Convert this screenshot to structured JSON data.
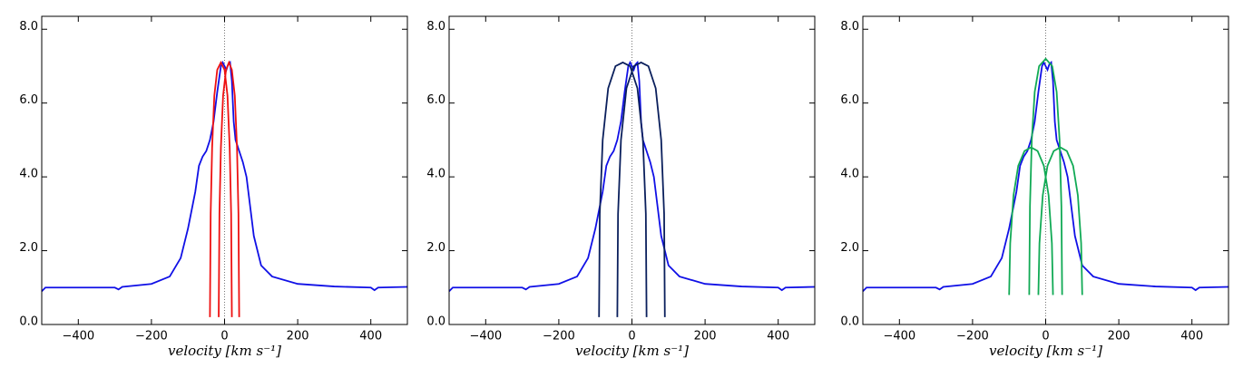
{
  "chart_data": [
    {
      "type": "line",
      "xlabel": "velocity [km s⁻¹]",
      "xlim": [
        -500,
        500
      ],
      "ylim": [
        0,
        8.35
      ],
      "xticks": [
        {
          "value": -400,
          "label": "−400"
        },
        {
          "value": -200,
          "label": "−200"
        },
        0,
        200,
        400
      ],
      "yticks": [
        {
          "value": 0,
          "label": "0.0"
        },
        {
          "value": 2,
          "label": "2.0"
        },
        {
          "value": 4,
          "label": "4.0"
        },
        {
          "value": 6,
          "label": "6.0"
        },
        {
          "value": 8,
          "label": "8.0"
        }
      ],
      "series": [
        {
          "color": "#1010e6",
          "x": [
            -500,
            -490,
            -400,
            -300,
            -290,
            -280,
            -200,
            -150,
            -120,
            -100,
            -80,
            -70,
            -60,
            -50,
            -40,
            -30,
            -20,
            -10,
            -5,
            0,
            5,
            10,
            15,
            20,
            25,
            30,
            40,
            50,
            60,
            70,
            80,
            100,
            130,
            200,
            300,
            400,
            410,
            420,
            500
          ],
          "values": [
            0.9,
            1.0,
            1.0,
            1.0,
            0.95,
            1.02,
            1.1,
            1.3,
            1.8,
            2.6,
            3.6,
            4.3,
            4.55,
            4.7,
            5.0,
            5.5,
            6.3,
            7.0,
            7.1,
            7.0,
            6.9,
            7.05,
            7.1,
            6.6,
            5.5,
            5.0,
            4.7,
            4.4,
            4.0,
            3.2,
            2.4,
            1.6,
            1.3,
            1.1,
            1.03,
            1.0,
            0.93,
            1.0,
            1.02
          ]
        },
        {
          "color": "#ee1111",
          "x": [
            -40,
            -38,
            -34,
            -28,
            -20,
            -10,
            0,
            8,
            14,
            18,
            20
          ],
          "values": [
            0.2,
            3.0,
            4.8,
            6.2,
            6.9,
            7.1,
            6.9,
            6.2,
            4.8,
            3.0,
            0.2
          ]
        },
        {
          "color": "#ee1111",
          "x": [
            -16,
            -14,
            -10,
            -4,
            4,
            12,
            20,
            28,
            34,
            38,
            40
          ],
          "values": [
            0.2,
            3.0,
            4.8,
            6.2,
            6.9,
            7.1,
            6.9,
            6.2,
            4.8,
            3.0,
            0.2
          ]
        }
      ]
    },
    {
      "type": "line",
      "xlabel": "velocity [km s⁻¹]",
      "xlim": [
        -500,
        500
      ],
      "ylim": [
        0,
        8.35
      ],
      "xticks": [
        {
          "value": -400,
          "label": "−400"
        },
        {
          "value": -200,
          "label": "−200"
        },
        0,
        200,
        400
      ],
      "yticks": [
        {
          "value": 0,
          "label": "0.0"
        },
        {
          "value": 2,
          "label": "2.0"
        },
        {
          "value": 4,
          "label": "4.0"
        },
        {
          "value": 6,
          "label": "6.0"
        },
        {
          "value": 8,
          "label": "8.0"
        }
      ],
      "series": [
        {
          "color": "#1010e6",
          "x": [
            -500,
            -490,
            -400,
            -300,
            -290,
            -280,
            -200,
            -150,
            -120,
            -100,
            -80,
            -70,
            -60,
            -50,
            -40,
            -30,
            -20,
            -10,
            -5,
            0,
            5,
            10,
            15,
            20,
            25,
            30,
            40,
            50,
            60,
            70,
            80,
            100,
            130,
            200,
            300,
            400,
            410,
            420,
            500
          ],
          "values": [
            0.9,
            1.0,
            1.0,
            1.0,
            0.95,
            1.02,
            1.1,
            1.3,
            1.8,
            2.6,
            3.6,
            4.3,
            4.55,
            4.7,
            5.0,
            5.5,
            6.3,
            7.0,
            7.1,
            7.0,
            6.9,
            7.05,
            7.1,
            6.6,
            5.5,
            5.0,
            4.7,
            4.4,
            4.0,
            3.2,
            2.4,
            1.6,
            1.3,
            1.1,
            1.03,
            1.0,
            0.93,
            1.0,
            1.02
          ]
        },
        {
          "color": "#0a1f5c",
          "x": [
            -90,
            -88,
            -80,
            -65,
            -45,
            -25,
            -5,
            15,
            30,
            38,
            40
          ],
          "values": [
            0.2,
            3.0,
            5.0,
            6.4,
            7.0,
            7.1,
            7.0,
            6.4,
            5.0,
            3.0,
            0.2
          ]
        },
        {
          "color": "#0a1f5c",
          "x": [
            -40,
            -38,
            -30,
            -15,
            5,
            25,
            45,
            65,
            80,
            88,
            90
          ],
          "values": [
            0.2,
            3.0,
            5.0,
            6.4,
            7.0,
            7.1,
            7.0,
            6.4,
            5.0,
            3.0,
            0.2
          ]
        }
      ]
    },
    {
      "type": "line",
      "xlabel": "velocity [km s⁻¹]",
      "xlim": [
        -500,
        500
      ],
      "ylim": [
        0,
        8.35
      ],
      "xticks": [
        {
          "value": -400,
          "label": "−400"
        },
        {
          "value": -200,
          "label": "−200"
        },
        0,
        200,
        400
      ],
      "yticks": [
        {
          "value": 0,
          "label": "0.0"
        },
        {
          "value": 2,
          "label": "2.0"
        },
        {
          "value": 4,
          "label": "4.0"
        },
        {
          "value": 6,
          "label": "6.0"
        },
        {
          "value": 8,
          "label": "8.0"
        }
      ],
      "series": [
        {
          "color": "#1010e6",
          "x": [
            -500,
            -490,
            -400,
            -300,
            -290,
            -280,
            -200,
            -150,
            -120,
            -100,
            -80,
            -70,
            -60,
            -50,
            -40,
            -30,
            -20,
            -10,
            -5,
            0,
            5,
            10,
            15,
            20,
            25,
            30,
            40,
            50,
            60,
            70,
            80,
            100,
            130,
            200,
            300,
            400,
            410,
            420,
            500
          ],
          "values": [
            0.9,
            1.0,
            1.0,
            1.0,
            0.95,
            1.02,
            1.1,
            1.3,
            1.8,
            2.6,
            3.6,
            4.3,
            4.55,
            4.7,
            5.0,
            5.5,
            6.3,
            7.0,
            7.1,
            7.0,
            6.9,
            7.05,
            7.1,
            6.6,
            5.5,
            5.0,
            4.7,
            4.4,
            4.0,
            3.2,
            2.4,
            1.6,
            1.3,
            1.1,
            1.03,
            1.0,
            0.93,
            1.0,
            1.02
          ]
        },
        {
          "color": "#11aa55",
          "x": [
            -45,
            -43,
            -38,
            -30,
            -18,
            0,
            18,
            30,
            38,
            43,
            45
          ],
          "values": [
            0.8,
            3.2,
            5.0,
            6.3,
            7.0,
            7.2,
            7.0,
            6.3,
            5.0,
            3.2,
            0.8
          ]
        },
        {
          "color": "#11aa55",
          "x": [
            -100,
            -97,
            -88,
            -75,
            -58,
            -40,
            -22,
            -5,
            8,
            17,
            20
          ],
          "values": [
            0.8,
            2.2,
            3.5,
            4.3,
            4.7,
            4.8,
            4.7,
            4.3,
            3.5,
            2.2,
            0.8
          ]
        },
        {
          "color": "#11aa55",
          "x": [
            -20,
            -17,
            -8,
            5,
            22,
            40,
            58,
            75,
            88,
            97,
            100
          ],
          "values": [
            0.8,
            2.2,
            3.5,
            4.3,
            4.7,
            4.8,
            4.7,
            4.3,
            3.5,
            2.2,
            0.8
          ]
        }
      ]
    }
  ]
}
